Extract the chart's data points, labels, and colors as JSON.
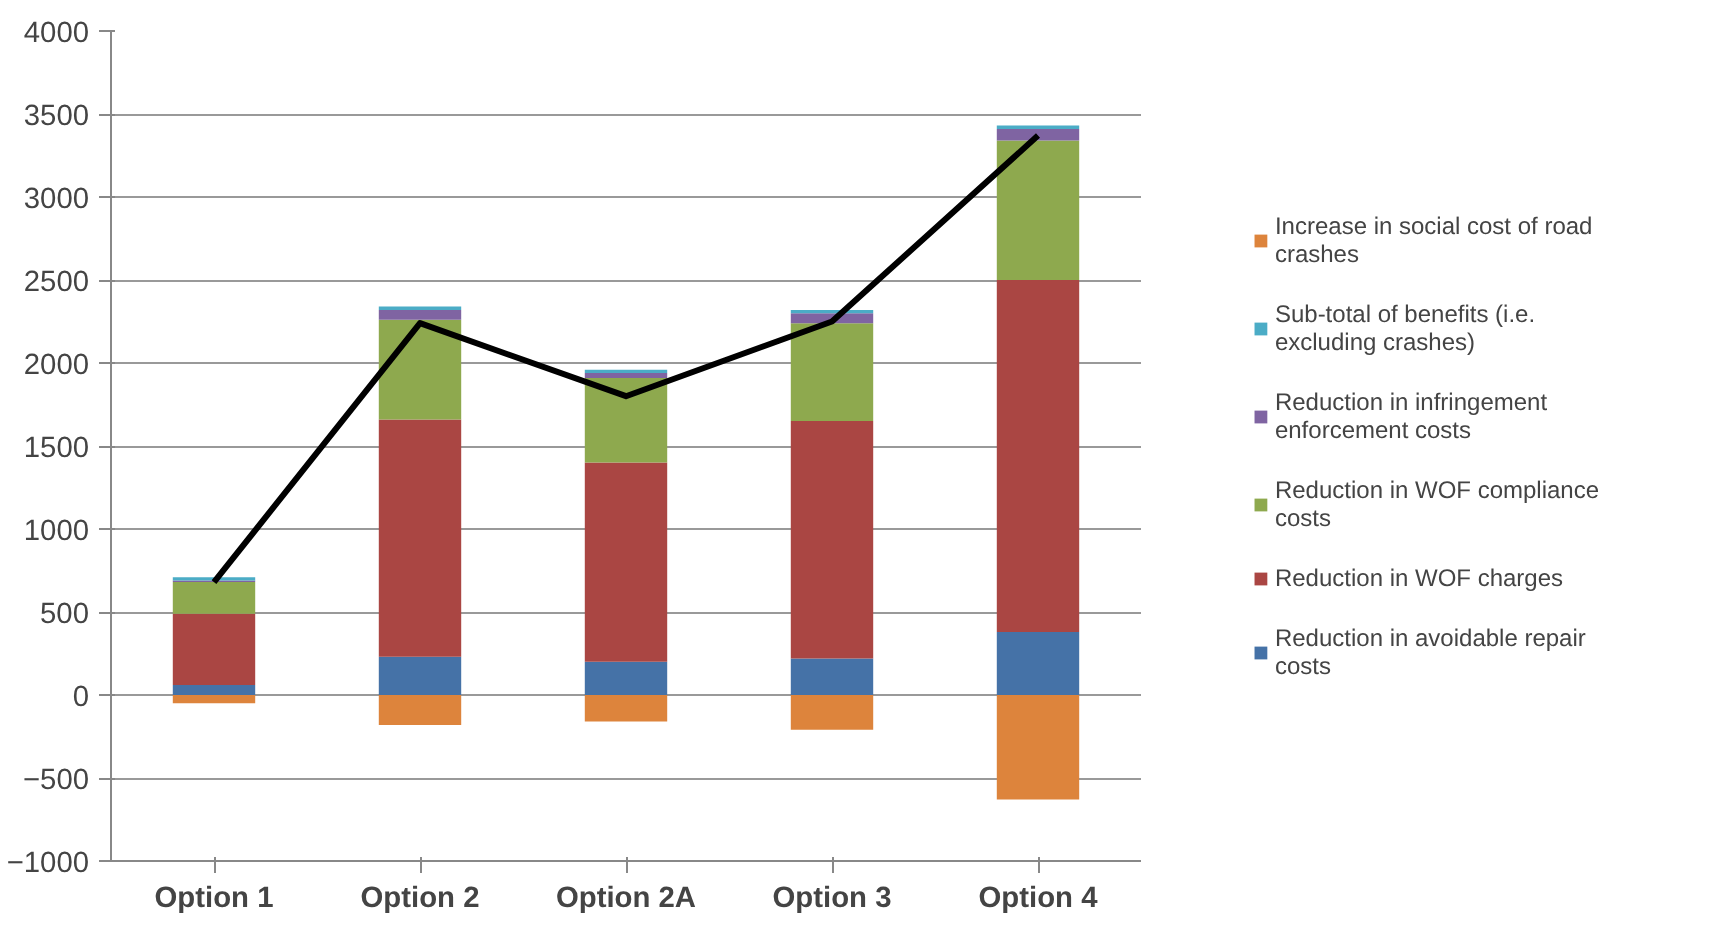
{
  "chart_data": {
    "type": "bar",
    "stacked": true,
    "categories": [
      "Option 1",
      "Option 2",
      "Option 2A",
      "Option 3",
      "Option 4"
    ],
    "series": [
      {
        "name": "Reduction in avoidable repair costs",
        "color": "#4572a7",
        "values": [
          60,
          230,
          200,
          220,
          380
        ]
      },
      {
        "name": "Reduction in WOF charges",
        "color": "#aa4643",
        "values": [
          430,
          1430,
          1200,
          1430,
          2120
        ]
      },
      {
        "name": "Reduction in WOF compliance costs",
        "color": "#8ea94e",
        "values": [
          190,
          600,
          510,
          590,
          840
        ]
      },
      {
        "name": "Reduction in infringement enforcement costs",
        "color": "#7f64a2",
        "values": [
          10,
          60,
          30,
          60,
          70
        ]
      },
      {
        "name": "Sub-total of benefits (i.e. excluding crashes)",
        "color": "#4bacc6",
        "values": [
          20,
          20,
          20,
          20,
          20
        ]
      },
      {
        "name": "Increase in social cost of road crashes",
        "color": "#dd843c",
        "values": [
          -50,
          -180,
          -160,
          -210,
          -630
        ]
      },
      {
        "type": "line",
        "color": "#000000",
        "values": [
          680,
          2240,
          1800,
          2250,
          3370
        ]
      }
    ],
    "ylim": [
      -1000,
      4000
    ],
    "yticks": [
      -1000,
      -500,
      0,
      500,
      1000,
      1500,
      2000,
      2500,
      3000,
      3500,
      4000
    ],
    "grid": "y",
    "legend": "right",
    "marker": "none",
    "line_style": "solid"
  }
}
